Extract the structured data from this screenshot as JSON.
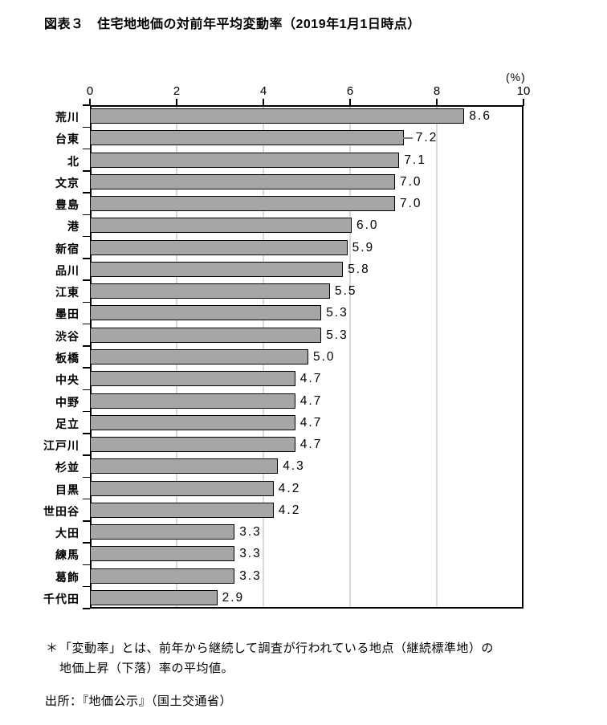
{
  "title": "図表３　住宅地地価の対前年平均変動率（2019年1月1日時点）",
  "footnote": {
    "marker": "＊",
    "line1": "「変動率」とは、前年から継続して調査が行われている地点（継続標準地）の",
    "line2": "地価上昇（下落）率の平均値。"
  },
  "source": "出所：『地価公示』（国土交通省）",
  "chart_data": {
    "type": "bar",
    "orientation": "horizontal",
    "title": "住宅地地価の対前年平均変動率（2019年1月1日時点）",
    "unit_label": "(%)",
    "xlabel": "",
    "ylabel": "",
    "xlim": [
      0,
      10
    ],
    "xticks": [
      "0",
      "2",
      "4",
      "6",
      "8",
      "10"
    ],
    "xtick_values": [
      0,
      2,
      4,
      6,
      8,
      10
    ],
    "gridline_values": [
      2,
      4,
      6,
      8
    ],
    "grid": "vertical-only",
    "legend": "none",
    "categories": [
      "荒川",
      "台東",
      "北",
      "文京",
      "豊島",
      "港",
      "新宿",
      "品川",
      "江東",
      "墨田",
      "渋谷",
      "板橋",
      "中央",
      "中野",
      "足立",
      "江戸川",
      "杉並",
      "目黒",
      "世田谷",
      "大田",
      "練馬",
      "葛飾",
      "千代田"
    ],
    "values": [
      8.6,
      7.2,
      7.1,
      7.0,
      7.0,
      6.0,
      5.9,
      5.8,
      5.5,
      5.3,
      5.3,
      5.0,
      4.7,
      4.7,
      4.7,
      4.7,
      4.3,
      4.2,
      4.2,
      3.3,
      3.3,
      3.3,
      2.9
    ],
    "data_labels": [
      "8.6",
      "7.2",
      "7.1",
      "7.0",
      "7.0",
      "6.0",
      "5.9",
      "5.8",
      "5.5",
      "5.3",
      "5.3",
      "5.0",
      "4.7",
      "4.7",
      "4.7",
      "4.7",
      "4.3",
      "4.2",
      "4.2",
      "3.3",
      "3.3",
      "3.3",
      "2.9"
    ],
    "leader_line_index": 1,
    "colors": {
      "bar_fill": "#a6a6a6",
      "bar_border": "#000000",
      "gridline": "#d9d9d9",
      "axis": "#000000",
      "leader": "#7f7f7f"
    }
  }
}
